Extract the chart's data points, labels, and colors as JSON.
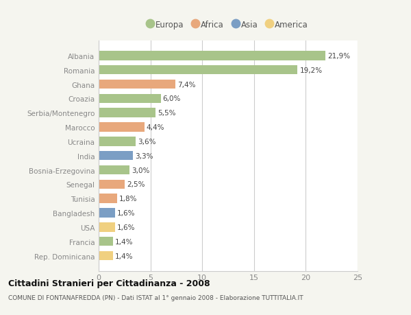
{
  "countries": [
    "Albania",
    "Romania",
    "Ghana",
    "Croazia",
    "Serbia/Montenegro",
    "Marocco",
    "Ucraina",
    "India",
    "Bosnia-Erzegovina",
    "Senegal",
    "Tunisia",
    "Bangladesh",
    "USA",
    "Francia",
    "Rep. Dominicana"
  ],
  "values": [
    21.9,
    19.2,
    7.4,
    6.0,
    5.5,
    4.4,
    3.6,
    3.3,
    3.0,
    2.5,
    1.8,
    1.6,
    1.6,
    1.4,
    1.4
  ],
  "labels": [
    "21,9%",
    "19,2%",
    "7,4%",
    "6,0%",
    "5,5%",
    "4,4%",
    "3,6%",
    "3,3%",
    "3,0%",
    "2,5%",
    "1,8%",
    "1,6%",
    "1,6%",
    "1,4%",
    "1,4%"
  ],
  "continents": [
    "Europa",
    "Europa",
    "Africa",
    "Europa",
    "Europa",
    "Africa",
    "Europa",
    "Asia",
    "Europa",
    "Africa",
    "Africa",
    "Asia",
    "America",
    "Europa",
    "America"
  ],
  "colors": {
    "Europa": "#a8c48a",
    "Africa": "#e8a87c",
    "Asia": "#7b9ec4",
    "America": "#f0d080"
  },
  "xlim": [
    0,
    25
  ],
  "xticks": [
    0,
    5,
    10,
    15,
    20,
    25
  ],
  "title": "Cittadini Stranieri per Cittadinanza - 2008",
  "subtitle": "COMUNE DI FONTANAFREDDA (PN) - Dati ISTAT al 1° gennaio 2008 - Elaborazione TUTTITALIA.IT",
  "background_color": "#f5f5ef",
  "bar_background": "#ffffff",
  "grid_color": "#cccccc",
  "legend_order": [
    "Europa",
    "Africa",
    "Asia",
    "America"
  ]
}
